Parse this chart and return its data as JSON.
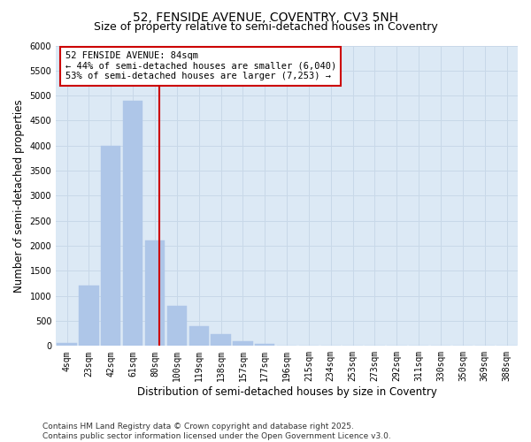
{
  "title_line1": "52, FENSIDE AVENUE, COVENTRY, CV3 5NH",
  "title_line2": "Size of property relative to semi-detached houses in Coventry",
  "xlabel": "Distribution of semi-detached houses by size in Coventry",
  "ylabel": "Number of semi-detached properties",
  "categories": [
    "4sqm",
    "23sqm",
    "42sqm",
    "61sqm",
    "80sqm",
    "100sqm",
    "119sqm",
    "138sqm",
    "157sqm",
    "177sqm",
    "196sqm",
    "215sqm",
    "234sqm",
    "253sqm",
    "273sqm",
    "292sqm",
    "311sqm",
    "330sqm",
    "350sqm",
    "369sqm",
    "388sqm"
  ],
  "values": [
    60,
    1200,
    4000,
    4900,
    2100,
    800,
    400,
    230,
    100,
    40,
    10,
    5,
    3,
    2,
    1,
    1,
    0,
    0,
    0,
    0,
    0
  ],
  "bar_color": "#aec6e8",
  "bar_edgecolor": "#aec6e8",
  "grid_color": "#c8d8e8",
  "background_color": "#dce9f5",
  "vline_color": "#cc0000",
  "vline_pos": 4.2,
  "annotation_text": "52 FENSIDE AVENUE: 84sqm\n← 44% of semi-detached houses are smaller (6,040)\n53% of semi-detached houses are larger (7,253) →",
  "annotation_box_color": "#ffffff",
  "annotation_box_edgecolor": "#cc0000",
  "ylim": [
    0,
    6000
  ],
  "yticks": [
    0,
    500,
    1000,
    1500,
    2000,
    2500,
    3000,
    3500,
    4000,
    4500,
    5000,
    5500,
    6000
  ],
  "footer_text": "Contains HM Land Registry data © Crown copyright and database right 2025.\nContains public sector information licensed under the Open Government Licence v3.0.",
  "title_fontsize": 10,
  "subtitle_fontsize": 9,
  "axis_label_fontsize": 8.5,
  "tick_fontsize": 7,
  "annotation_fontsize": 7.5,
  "footer_fontsize": 6.5
}
